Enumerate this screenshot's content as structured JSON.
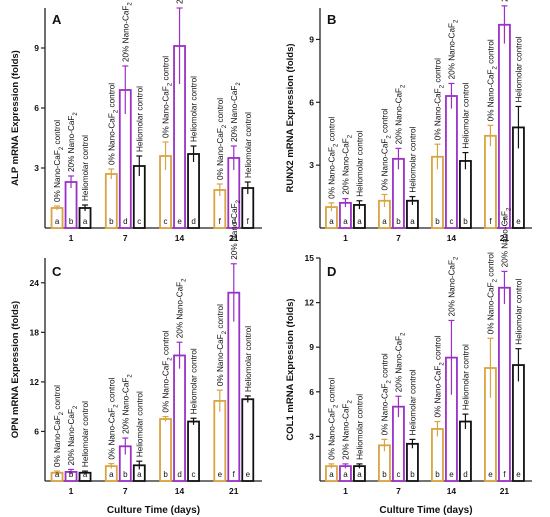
{
  "colors": {
    "nano0": "#D9A441",
    "nano20": "#9B30C7",
    "helio": "#111111"
  },
  "chart_data": [
    {
      "type": "bar",
      "panel": "A",
      "ylabel": "ALP mRNA Expression (folds)",
      "xlabel": "",
      "categories": [
        "1",
        "7",
        "14",
        "21"
      ],
      "ylim": [
        0,
        11
      ],
      "yticks": [
        "3",
        "6",
        "9"
      ],
      "series": [
        {
          "name": "0% Nano-CaF2 control",
          "values": [
            1.0,
            2.7,
            3.6,
            1.9
          ],
          "errors": [
            0.1,
            0.25,
            0.7,
            0.3
          ],
          "letters": [
            "a",
            "b",
            "c",
            "f"
          ]
        },
        {
          "name": "20% Nano-CaF2",
          "values": [
            2.3,
            6.9,
            9.1,
            3.5
          ],
          "errors": [
            0.3,
            1.2,
            1.9,
            0.6
          ],
          "letters": [
            "b",
            "d",
            "e",
            "d"
          ]
        },
        {
          "name": "Heliomolar control",
          "values": [
            1.0,
            3.1,
            3.7,
            2.0
          ],
          "errors": [
            0.15,
            0.5,
            0.4,
            0.3
          ],
          "letters": [
            "a",
            "c",
            "d",
            "f"
          ]
        }
      ]
    },
    {
      "type": "bar",
      "panel": "B",
      "ylabel": "RUNX2 mRNA Expression (folds)",
      "xlabel": "",
      "categories": [
        "1",
        "7",
        "14",
        "21"
      ],
      "ylim": [
        0,
        10.5
      ],
      "yticks": [
        "3",
        "6",
        "9"
      ],
      "series": [
        {
          "name": "0% Nano-CaF2 control",
          "values": [
            1.0,
            1.3,
            3.4,
            4.4
          ],
          "errors": [
            0.2,
            0.3,
            0.6,
            0.5
          ],
          "letters": [
            "a",
            "a",
            "b",
            "f"
          ]
        },
        {
          "name": "20% Nano-CaF2",
          "values": [
            1.2,
            3.3,
            6.3,
            9.7
          ],
          "errors": [
            0.2,
            0.5,
            0.6,
            0.9
          ],
          "letters": [
            "a",
            "b",
            "c",
            "f"
          ]
        },
        {
          "name": "Heliomolar control",
          "values": [
            1.1,
            1.3,
            3.2,
            4.8
          ],
          "errors": [
            0.2,
            0.2,
            0.4,
            1.0
          ],
          "letters": [
            "a",
            "a",
            "b",
            "e"
          ]
        }
      ]
    },
    {
      "type": "bar",
      "panel": "C",
      "ylabel": "OPN mRNA Expression (folds)",
      "xlabel": "Culture Time (days)",
      "categories": [
        "1",
        "7",
        "14",
        "21"
      ],
      "ylim": [
        0,
        27
      ],
      "yticks": [
        "6",
        "12",
        "18",
        "24"
      ],
      "series": [
        {
          "name": "0% Nano-CaF2 control",
          "values": [
            1.0,
            1.8,
            7.5,
            9.7
          ],
          "errors": [
            0.2,
            0.3,
            0.3,
            1.3
          ],
          "letters": [
            "a",
            "a",
            "b",
            "e"
          ]
        },
        {
          "name": "20% Nano-CaF2",
          "values": [
            1.1,
            4.2,
            15.2,
            22.8
          ],
          "errors": [
            0.3,
            1.0,
            1.6,
            3.5
          ],
          "letters": [
            "b",
            "b",
            "d",
            "f"
          ]
        },
        {
          "name": "Heliomolar control",
          "values": [
            1.0,
            1.9,
            7.2,
            9.9
          ],
          "errors": [
            0.2,
            0.5,
            0.4,
            0.4
          ],
          "letters": [
            "a",
            "a",
            "c",
            "e"
          ]
        }
      ]
    },
    {
      "type": "bar",
      "panel": "D",
      "ylabel": "COL1 mRNA Expression (folds)",
      "xlabel": "Culture Time (days)",
      "categories": [
        "1",
        "7",
        "14",
        "21"
      ],
      "ylim": [
        0,
        15
      ],
      "yticks": [
        "3",
        "6",
        "9",
        "12",
        "15"
      ],
      "series": [
        {
          "name": "0% Nano-CaF2 control",
          "values": [
            1.0,
            2.4,
            3.5,
            7.6
          ],
          "errors": [
            0.15,
            0.4,
            0.5,
            2.0
          ],
          "letters": [
            "a",
            "b",
            "b",
            "e"
          ]
        },
        {
          "name": "20% Nano-CaF2",
          "values": [
            1.0,
            5.0,
            8.3,
            13.0
          ],
          "errors": [
            0.15,
            0.7,
            2.5,
            1.1
          ],
          "letters": [
            "a",
            "c",
            "e",
            "f"
          ]
        },
        {
          "name": "Heliomolar control",
          "values": [
            1.0,
            2.5,
            4.0,
            7.8
          ],
          "errors": [
            0.15,
            0.3,
            0.5,
            1.1
          ],
          "letters": [
            "a",
            "b",
            "d",
            "e"
          ]
        }
      ]
    }
  ]
}
